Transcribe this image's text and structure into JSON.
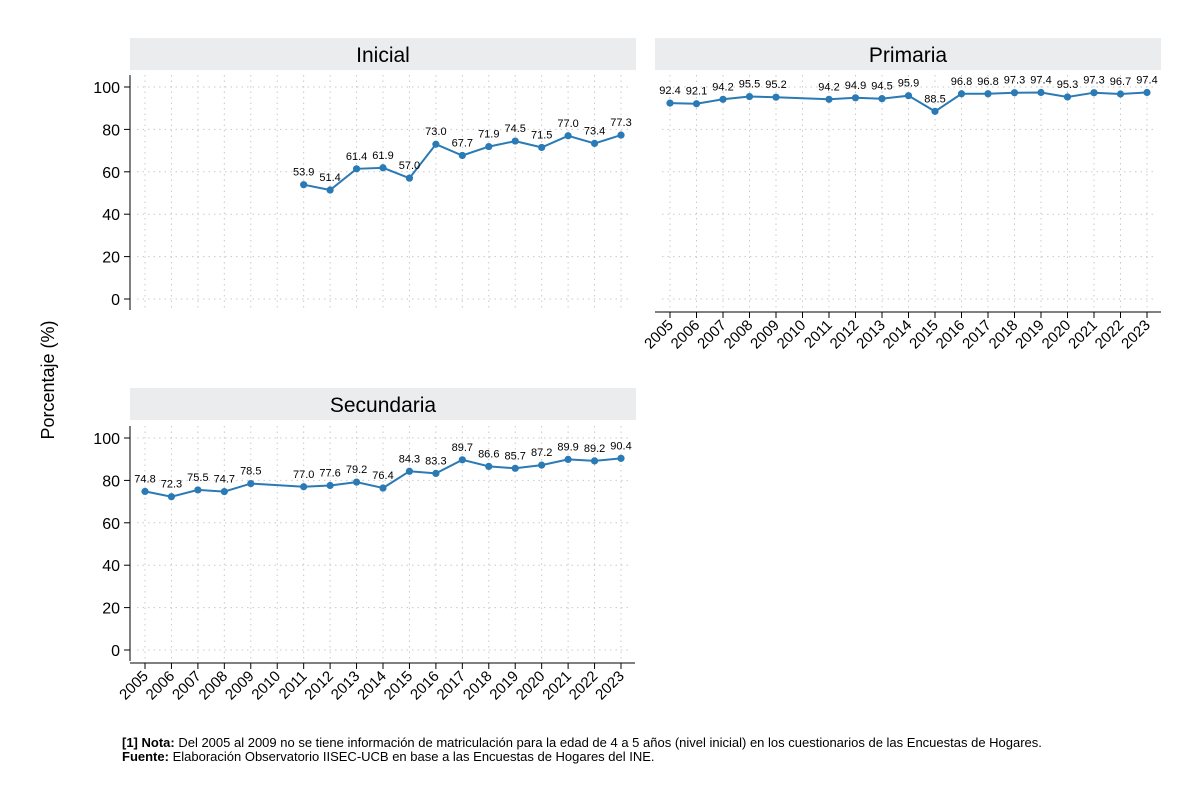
{
  "ylabel": "Porcentaje (%)",
  "footnote": {
    "note_label": "[1] Nota:",
    "note_text": " Del 2005 al 2009 no se tiene información de matriculación para la edad de 4 a 5 años (nivel inicial) en los cuestionarios de las Encuestas de Hogares.",
    "source_label": "Fuente:",
    "source_text": " Elaboración Observatorio IISEC-UCB en base a las Encuestas de Hogares del INE."
  },
  "colors": {
    "line": "#2a7ab5",
    "panel_header": "#eaeced",
    "grid": "#c9c9c9"
  },
  "chart_data": [
    {
      "type": "line",
      "title": "Inicial",
      "x": [
        2005,
        2006,
        2007,
        2008,
        2009,
        2010,
        2011,
        2012,
        2013,
        2014,
        2015,
        2016,
        2017,
        2018,
        2019,
        2020,
        2021,
        2022,
        2023
      ],
      "ylim": [
        0,
        100
      ],
      "yticks": [
        0,
        20,
        40,
        60,
        80,
        100
      ],
      "x_tick_labels_shown": false,
      "grid": true,
      "series": [
        {
          "points": [
            [
              2011,
              53.9
            ],
            [
              2012,
              51.4
            ],
            [
              2013,
              61.4
            ],
            [
              2014,
              61.9
            ],
            [
              2015,
              57.0
            ],
            [
              2016,
              73.0
            ],
            [
              2017,
              67.7
            ],
            [
              2018,
              71.9
            ],
            [
              2019,
              74.5
            ],
            [
              2020,
              71.5
            ],
            [
              2021,
              77.0
            ],
            [
              2022,
              73.4
            ],
            [
              2023,
              77.3
            ]
          ],
          "labels": [
            "53.9",
            "51.4",
            "61.4",
            "61.9",
            "57.0",
            "73.0",
            "67.7",
            "71.9",
            "74.5",
            "71.5",
            "77.0",
            "73.4",
            "77.3"
          ]
        }
      ]
    },
    {
      "type": "line",
      "title": "Primaria",
      "x": [
        2005,
        2006,
        2007,
        2008,
        2009,
        2010,
        2011,
        2012,
        2013,
        2014,
        2015,
        2016,
        2017,
        2018,
        2019,
        2020,
        2021,
        2022,
        2023
      ],
      "ylim": [
        0,
        100
      ],
      "yticks": [
        0,
        20,
        40,
        60,
        80,
        100
      ],
      "y_tick_labels_shown": false,
      "x_tick_labels_shown": true,
      "grid": true,
      "series": [
        {
          "points": [
            [
              2005,
              92.4
            ],
            [
              2006,
              92.1
            ],
            [
              2007,
              94.2
            ],
            [
              2008,
              95.5
            ],
            [
              2009,
              95.2
            ],
            [
              2011,
              94.2
            ],
            [
              2012,
              94.9
            ],
            [
              2013,
              94.5
            ],
            [
              2014,
              95.9
            ],
            [
              2015,
              88.5
            ],
            [
              2016,
              96.8
            ],
            [
              2017,
              96.8
            ],
            [
              2018,
              97.3
            ],
            [
              2019,
              97.4
            ],
            [
              2020,
              95.3
            ],
            [
              2021,
              97.3
            ],
            [
              2022,
              96.7
            ],
            [
              2023,
              97.4
            ]
          ],
          "labels": [
            "92.4",
            "92.1",
            "94.2",
            "95.5",
            "95.2",
            "94.2",
            "94.9",
            "94.5",
            "95.9",
            "88.5",
            "96.8",
            "96.8",
            "97.3",
            "97.4",
            "95.3",
            "97.3",
            "96.7",
            "97.4"
          ]
        }
      ]
    },
    {
      "type": "line",
      "title": "Secundaria",
      "x": [
        2005,
        2006,
        2007,
        2008,
        2009,
        2010,
        2011,
        2012,
        2013,
        2014,
        2015,
        2016,
        2017,
        2018,
        2019,
        2020,
        2021,
        2022,
        2023
      ],
      "ylim": [
        0,
        100
      ],
      "yticks": [
        0,
        20,
        40,
        60,
        80,
        100
      ],
      "x_tick_labels_shown": true,
      "grid": true,
      "series": [
        {
          "points": [
            [
              2005,
              74.8
            ],
            [
              2006,
              72.3
            ],
            [
              2007,
              75.5
            ],
            [
              2008,
              74.7
            ],
            [
              2009,
              78.5
            ],
            [
              2011,
              77.0
            ],
            [
              2012,
              77.6
            ],
            [
              2013,
              79.2
            ],
            [
              2014,
              76.4
            ],
            [
              2015,
              84.3
            ],
            [
              2016,
              83.3
            ],
            [
              2017,
              89.7
            ],
            [
              2018,
              86.6
            ],
            [
              2019,
              85.7
            ],
            [
              2020,
              87.2
            ],
            [
              2021,
              89.9
            ],
            [
              2022,
              89.2
            ],
            [
              2023,
              90.4
            ]
          ],
          "labels": [
            "74.8",
            "72.3",
            "75.5",
            "74.7",
            "78.5",
            "77.0",
            "77.6",
            "79.2",
            "76.4",
            "84.3",
            "83.3",
            "89.7",
            "86.6",
            "85.7",
            "87.2",
            "89.9",
            "89.2",
            "90.4"
          ]
        }
      ]
    }
  ]
}
